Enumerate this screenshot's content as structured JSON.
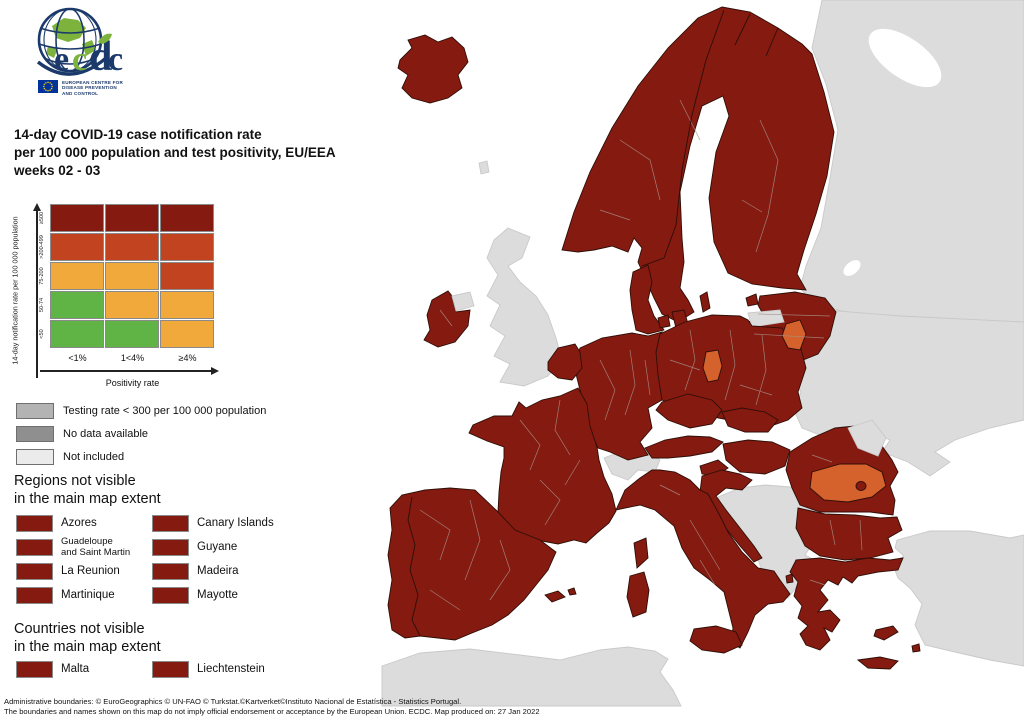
{
  "logo": {
    "wordmark_letters": [
      {
        "ch": "e",
        "color_key": "navy"
      },
      {
        "ch": "c",
        "color_key": "logogreen"
      },
      {
        "ch": "d",
        "color_key": "navy"
      },
      {
        "ch": "c",
        "color_key": "navy"
      }
    ],
    "subtitle_lines": [
      "EUROPEAN CENTRE FOR",
      "DISEASE PREVENTION",
      "AND CONTROL"
    ]
  },
  "title": {
    "line1": "14-day COVID-19 case notification rate",
    "line2": "per 100 000 population and test positivity, EU/EEA",
    "line3": "weeks 02 - 03"
  },
  "matrix": {
    "y_axis_label": "14-day notification rate per 100 000 population",
    "x_axis_label": "Positivity rate",
    "row_labels": [
      "≥500",
      ">200-499",
      "75-200",
      "50-74",
      "<50"
    ],
    "col_labels": [
      "<1%",
      "1<4%",
      "≥4%"
    ],
    "cells": [
      [
        "darkred",
        "darkred",
        "darkred"
      ],
      [
        "rust",
        "rust",
        "rust"
      ],
      [
        "amber",
        "amber",
        "rust"
      ],
      [
        "green",
        "amber",
        "amber"
      ],
      [
        "green",
        "green",
        "amber"
      ]
    ]
  },
  "gray_legend": [
    {
      "label": "Testing rate < 300 per 100 000 population",
      "color_key": "testing"
    },
    {
      "label": "No data available",
      "color_key": "nodata"
    },
    {
      "label": "Not included",
      "color_key": "notincluded"
    }
  ],
  "regions_section": {
    "heading_line1": "Regions not visible",
    "heading_line2": "in the main map extent",
    "items": [
      "Azores",
      "Canary Islands",
      "Guadeloupe and Saint Martin",
      "Guyane",
      "La Reunion",
      "Madeira",
      "Martinique",
      "Mayotte"
    ]
  },
  "countries_section": {
    "heading_line1": "Countries not visible",
    "heading_line2": "in the main map extent",
    "items": [
      "Malta",
      "Liechtenstein"
    ]
  },
  "footer": {
    "line1": "Administrative boundaries: © EuroGeographics © UN-FAO © Turkstat.©Kartverket©Instituto Nacional de Estatística - Statistics Portugal.",
    "line2": "The boundaries and names shown on this map do not imply official endorsement or acceptance by the European Union. ECDC. Map produced on: 27 Jan 2022"
  },
  "colors": {
    "darkred": "#851a10",
    "rust": "#c2431f",
    "amber": "#f2a93b",
    "green": "#5fb445",
    "maporange": "#d5612c",
    "testing": "#b3b3b3",
    "nodata": "#8f8f8f",
    "notincluded": "#ebebeb",
    "mapgray": "#dcdcdc",
    "sea": "#ffffff",
    "border_dark": "#2e0e07",
    "border_region": "#a89288",
    "border_gray": "#c9c9c9",
    "navy": "#1b3a6b",
    "logogreen": "#7db33c",
    "flag_blue": "#003399",
    "flag_yellow": "#ffcc00"
  },
  "map": {
    "regions": [
      {
        "id": "russia",
        "status": "not_included"
      },
      {
        "id": "belarus-ukraine",
        "status": "not_included"
      },
      {
        "id": "turkey",
        "status": "not_included"
      },
      {
        "id": "north-africa",
        "status": "not_included"
      },
      {
        "id": "united-kingdom",
        "status": "not_included"
      },
      {
        "id": "northern-ireland",
        "status": "not_included"
      },
      {
        "id": "switzerland",
        "status": "not_included"
      },
      {
        "id": "western-balkans",
        "status": "not_included"
      },
      {
        "id": "kaliningrad",
        "status": "not_included"
      },
      {
        "id": "moldova",
        "status": "not_included"
      },
      {
        "id": "faroe-islands",
        "status": "not_included"
      },
      {
        "id": "iceland",
        "status": "dark_red"
      },
      {
        "id": "ireland",
        "status": "dark_red"
      },
      {
        "id": "scandinavia-finland",
        "status": "dark_red"
      },
      {
        "id": "gotland",
        "status": "dark_red"
      },
      {
        "id": "saaremaa",
        "status": "dark_red"
      },
      {
        "id": "baltics",
        "status": "dark_red"
      },
      {
        "id": "denmark-jutland",
        "status": "dark_red"
      },
      {
        "id": "funen",
        "status": "dark_red"
      },
      {
        "id": "zealand",
        "status": "dark_red"
      },
      {
        "id": "bornholm",
        "status": "dark_red"
      },
      {
        "id": "germany",
        "status": "dark_red"
      },
      {
        "id": "benelux",
        "status": "dark_red"
      },
      {
        "id": "poland",
        "status": "dark_red"
      },
      {
        "id": "czechia",
        "status": "dark_red"
      },
      {
        "id": "slovakia",
        "status": "dark_red"
      },
      {
        "id": "austria",
        "status": "dark_red"
      },
      {
        "id": "hungary",
        "status": "dark_red"
      },
      {
        "id": "slovenia",
        "status": "dark_red"
      },
      {
        "id": "croatia",
        "status": "dark_red"
      },
      {
        "id": "france",
        "status": "dark_red"
      },
      {
        "id": "iberia",
        "status": "dark_red"
      },
      {
        "id": "balearics",
        "status": "dark_red"
      },
      {
        "id": "balearics-2",
        "status": "dark_red"
      },
      {
        "id": "italy",
        "status": "dark_red"
      },
      {
        "id": "sicily",
        "status": "dark_red"
      },
      {
        "id": "sardinia",
        "status": "dark_red"
      },
      {
        "id": "corsica",
        "status": "dark_red"
      },
      {
        "id": "romania",
        "status": "dark_red"
      },
      {
        "id": "bulgaria",
        "status": "dark_red"
      },
      {
        "id": "greece",
        "status": "dark_red"
      },
      {
        "id": "crete",
        "status": "dark_red"
      },
      {
        "id": "cyprus",
        "status": "dark_red"
      },
      {
        "id": "corfu",
        "status": "dark_red"
      },
      {
        "id": "rhodes",
        "status": "dark_red"
      },
      {
        "id": "poland-region-orange",
        "status": "orange"
      },
      {
        "id": "lithuania-region-orange",
        "status": "orange"
      },
      {
        "id": "romania-south-orange",
        "status": "orange"
      },
      {
        "id": "bucharest",
        "status": "dark_red"
      }
    ]
  }
}
